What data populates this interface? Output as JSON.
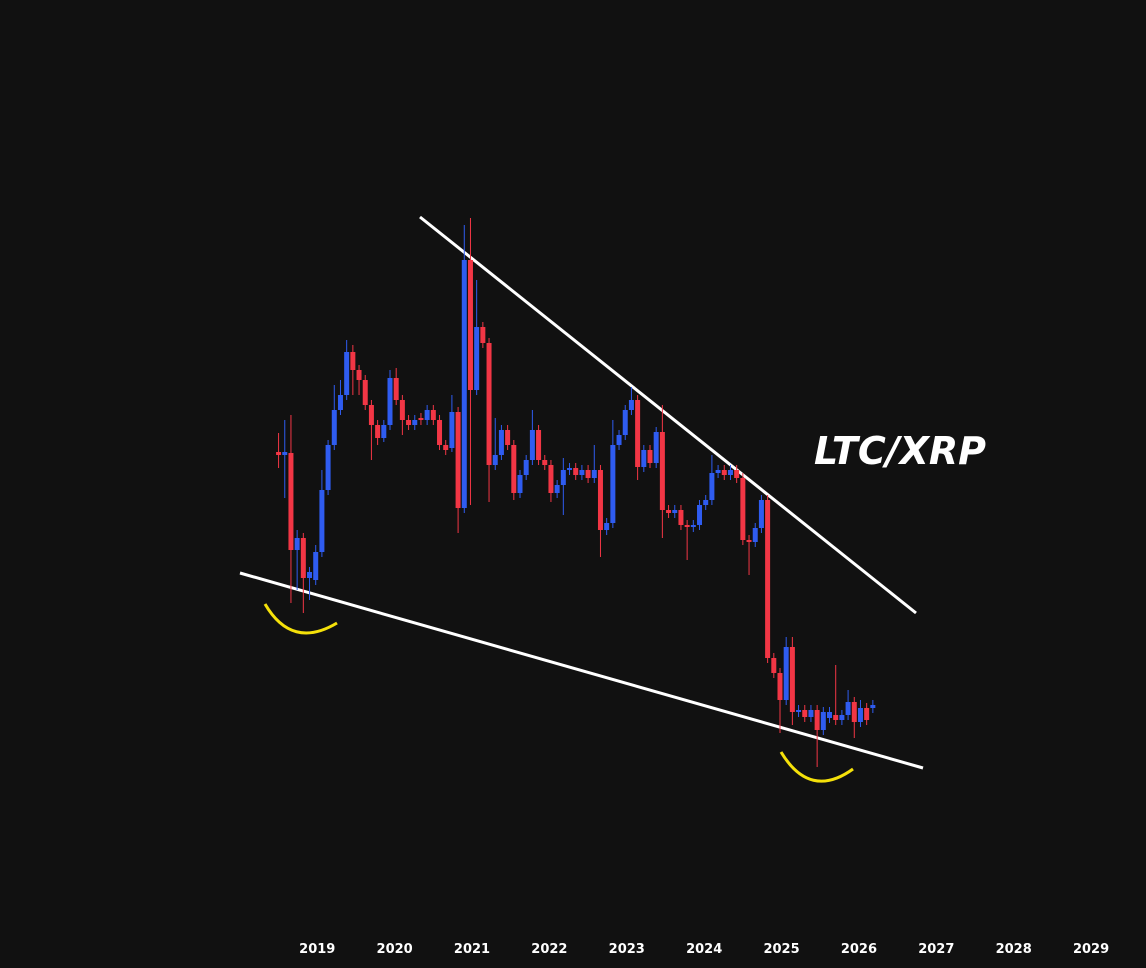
{
  "chart_data": {
    "type": "candlestick",
    "annotation": "LTC/XRP",
    "up_color": "#2f5cf0",
    "down_color": "#f23645",
    "xlim": [
      2014.9,
      2029.71
    ],
    "ylim": [
      0,
      93
    ],
    "xticks": [
      2019,
      2020,
      2021,
      2022,
      2023,
      2024,
      2025,
      2026,
      2027,
      2028,
      2029
    ],
    "x": [
      2018.5,
      2018.58,
      2018.66,
      2018.74,
      2018.82,
      2018.9,
      2018.98,
      2019.06,
      2019.14,
      2019.22,
      2019.3,
      2019.38,
      2019.46,
      2019.54,
      2019.62,
      2019.7,
      2019.78,
      2019.86,
      2019.94,
      2020.02,
      2020.1,
      2020.18,
      2020.26,
      2020.34,
      2020.42,
      2020.5,
      2020.58,
      2020.66,
      2020.74,
      2020.82,
      2020.9,
      2020.98,
      2021.06,
      2021.14,
      2021.22,
      2021.3,
      2021.38,
      2021.46,
      2021.54,
      2021.62,
      2021.7,
      2021.78,
      2021.86,
      2021.94,
      2022.02,
      2022.1,
      2022.18,
      2022.26,
      2022.34,
      2022.42,
      2022.5,
      2022.58,
      2022.66,
      2022.74,
      2022.82,
      2022.9,
      2022.98,
      2023.06,
      2023.14,
      2023.22,
      2023.3,
      2023.38,
      2023.46,
      2023.54,
      2023.62,
      2023.7,
      2023.78,
      2023.86,
      2023.94,
      2024.02,
      2024.1,
      2024.18,
      2024.26,
      2024.34,
      2024.42,
      2024.5,
      2024.58,
      2024.66,
      2024.74,
      2024.82,
      2024.9,
      2024.98,
      2025.06,
      2025.14,
      2025.22,
      2025.3,
      2025.38,
      2025.46,
      2025.54,
      2025.62,
      2025.7,
      2025.78,
      2025.86,
      2025.94,
      2026.02,
      2026.1,
      2026.18
    ],
    "open": [
      47.8,
      47.5,
      47.7,
      38.0,
      39.2,
      35.2,
      35.0,
      37.8,
      44.0,
      48.5,
      52.0,
      53.5,
      57.8,
      56.0,
      55.0,
      52.5,
      50.5,
      49.2,
      50.5,
      55.2,
      53.0,
      51.0,
      50.5,
      51.2,
      51.0,
      52.0,
      51.0,
      48.5,
      48.2,
      51.8,
      42.2,
      67.0,
      54.0,
      60.3,
      58.7,
      46.5,
      47.5,
      50.0,
      48.5,
      43.7,
      45.5,
      47.0,
      50.0,
      47.0,
      46.5,
      43.7,
      44.5,
      46.0,
      46.2,
      45.5,
      46.0,
      45.2,
      46.0,
      40.0,
      40.7,
      48.5,
      49.5,
      52.0,
      53.0,
      46.3,
      48.0,
      46.7,
      49.8,
      42.0,
      41.7,
      42.0,
      40.5,
      40.3,
      40.5,
      42.5,
      43.0,
      45.7,
      46.0,
      45.5,
      46.0,
      45.2,
      39.0,
      38.8,
      40.2,
      43.0,
      27.2,
      25.7,
      23.0,
      28.3,
      21.8,
      22.0,
      21.3,
      22.0,
      20.0,
      21.2,
      21.5,
      21.0,
      21.5,
      22.8,
      20.8,
      22.2,
      22.2
    ],
    "high": [
      49.7,
      51.0,
      51.5,
      40.0,
      39.7,
      36.3,
      38.5,
      46.0,
      49.0,
      54.5,
      55.0,
      59.0,
      58.5,
      56.5,
      55.5,
      53.0,
      51.0,
      51.0,
      56.0,
      56.2,
      53.5,
      51.5,
      51.5,
      51.7,
      52.5,
      52.5,
      51.5,
      49.0,
      53.5,
      52.3,
      70.5,
      71.2,
      65.0,
      60.8,
      59.2,
      51.2,
      50.5,
      50.5,
      49.0,
      46.0,
      47.5,
      52.0,
      50.5,
      47.5,
      47.0,
      45.0,
      47.2,
      46.7,
      46.7,
      46.5,
      46.5,
      48.5,
      46.5,
      41.2,
      51.0,
      50.0,
      52.5,
      54.3,
      53.5,
      48.5,
      48.5,
      50.3,
      52.5,
      42.5,
      42.5,
      42.5,
      41.0,
      41.0,
      43.0,
      43.5,
      47.5,
      46.5,
      46.5,
      46.5,
      46.5,
      45.7,
      39.5,
      40.7,
      43.5,
      43.5,
      27.7,
      26.2,
      29.3,
      29.3,
      22.5,
      22.5,
      22.5,
      22.5,
      22.3,
      22.3,
      26.5,
      22.0,
      24.0,
      23.3,
      23.0,
      22.7,
      23.0
    ],
    "low": [
      46.2,
      43.2,
      32.7,
      34.0,
      31.7,
      33.0,
      34.5,
      37.3,
      43.5,
      48.0,
      51.5,
      53.0,
      53.5,
      53.5,
      52.0,
      47.0,
      48.5,
      48.8,
      50.0,
      52.5,
      49.5,
      50.0,
      50.0,
      50.5,
      50.5,
      50.5,
      48.0,
      47.5,
      47.8,
      39.7,
      41.7,
      42.5,
      53.5,
      58.2,
      42.8,
      46.0,
      47.0,
      48.0,
      43.0,
      43.2,
      45.0,
      46.5,
      46.5,
      46.0,
      42.8,
      43.2,
      41.5,
      45.5,
      45.0,
      45.0,
      44.7,
      44.7,
      37.3,
      39.5,
      40.2,
      48.0,
      49.0,
      51.5,
      45.0,
      45.8,
      46.2,
      46.2,
      39.2,
      41.2,
      41.2,
      40.0,
      37.0,
      39.8,
      40.0,
      42.0,
      42.5,
      45.2,
      45.0,
      45.0,
      44.7,
      38.5,
      35.5,
      38.3,
      39.7,
      26.7,
      25.2,
      19.7,
      22.5,
      20.5,
      21.3,
      20.8,
      20.8,
      16.3,
      19.5,
      20.7,
      20.5,
      20.5,
      21.0,
      19.2,
      20.3,
      20.5,
      21.7
    ],
    "close": [
      47.5,
      47.8,
      38.0,
      39.2,
      35.2,
      35.8,
      37.8,
      44.0,
      48.5,
      52.0,
      53.5,
      57.8,
      56.0,
      55.0,
      52.5,
      50.5,
      49.2,
      50.5,
      55.2,
      53.0,
      51.0,
      50.5,
      51.0,
      51.0,
      52.0,
      51.0,
      48.5,
      48.0,
      51.8,
      42.2,
      67.0,
      54.0,
      60.3,
      58.7,
      46.5,
      47.5,
      50.0,
      48.5,
      43.7,
      45.5,
      47.0,
      50.0,
      47.0,
      46.5,
      43.7,
      44.5,
      46.0,
      46.2,
      45.5,
      46.0,
      45.2,
      46.0,
      40.0,
      40.7,
      48.5,
      49.5,
      52.0,
      53.0,
      46.3,
      48.0,
      46.7,
      49.8,
      42.0,
      41.7,
      42.0,
      40.5,
      40.3,
      40.5,
      42.5,
      43.0,
      45.7,
      46.0,
      45.5,
      46.0,
      45.2,
      39.0,
      38.8,
      40.2,
      43.0,
      27.2,
      25.7,
      23.0,
      28.3,
      21.8,
      22.0,
      21.3,
      22.0,
      20.0,
      21.8,
      21.8,
      21.0,
      21.5,
      22.8,
      20.8,
      22.2,
      21.0,
      22.5
    ]
  }
}
